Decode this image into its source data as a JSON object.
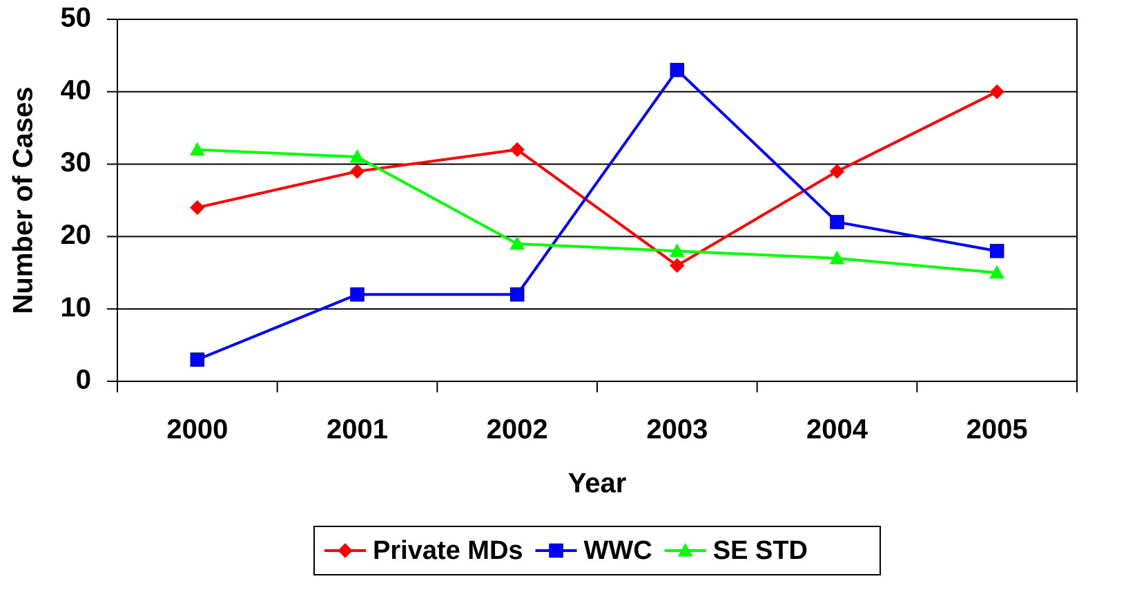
{
  "chart_data": {
    "type": "line",
    "xlabel": "Year",
    "ylabel": "Number of Cases",
    "categories": [
      "2000",
      "2001",
      "2002",
      "2003",
      "2004",
      "2005"
    ],
    "series": [
      {
        "name": "Private MDs",
        "color": "#ff0000",
        "marker": "diamond",
        "values": [
          24,
          29,
          32,
          16,
          29,
          40
        ]
      },
      {
        "name": "WWC",
        "color": "#0000ff",
        "marker": "square",
        "values": [
          3,
          12,
          12,
          43,
          22,
          18
        ]
      },
      {
        "name": "SE STD",
        "color": "#00ff00",
        "marker": "triangle",
        "values": [
          32,
          31,
          19,
          18,
          17,
          15
        ]
      }
    ],
    "ylim": [
      0,
      50
    ],
    "yticks": [
      0,
      10,
      20,
      30,
      40,
      50
    ],
    "grid": true,
    "legend": "bottom"
  }
}
